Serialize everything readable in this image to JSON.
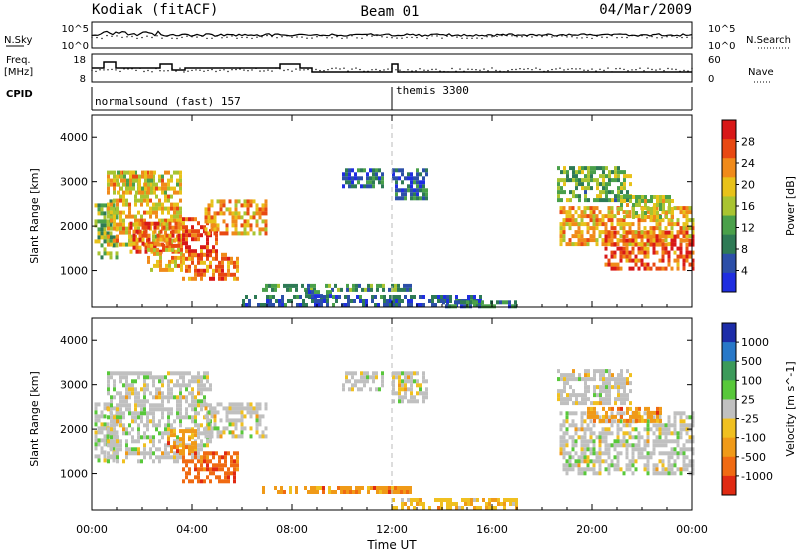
{
  "header": {
    "station": "Kodiak (fitACF)",
    "beam": "Beam 01",
    "date": "04/Mar/2009"
  },
  "top_panels": {
    "nsky": {
      "left_label": "N.Sky",
      "right_label": "N.Search",
      "left_ticks": [
        "10^5",
        "10^0"
      ],
      "right_ticks": [
        "10^5",
        "10^0"
      ]
    },
    "freq": {
      "left_label_line1": "Freq.",
      "left_label_line2": "[MHz]",
      "right_label": "Nave",
      "left_ticks": [
        "18",
        "8"
      ],
      "right_ticks": [
        "60",
        "0"
      ]
    },
    "cpid": {
      "label": "CPID",
      "modes": [
        {
          "name": "normalsound (fast) 157",
          "start_hour": 0
        },
        {
          "name": "themis 3300",
          "start_hour": 12
        }
      ]
    }
  },
  "chart_data": [
    {
      "type": "heatmap",
      "title": "",
      "xlabel": "Time UT",
      "ylabel": "Slant Range [km]",
      "xlim": [
        0,
        24
      ],
      "ylim": [
        180,
        4500
      ],
      "xticks": [
        "00:00",
        "04:00",
        "08:00",
        "12:00",
        "16:00",
        "20:00",
        "00:00"
      ],
      "yticks": [
        1000,
        2000,
        3000,
        4000
      ],
      "colorbar": {
        "label": "Power [dB]",
        "ticks": [
          "4",
          "8",
          "12",
          "16",
          "20",
          "24",
          "28"
        ],
        "range": [
          0,
          32
        ],
        "colors": [
          "#1f2ee0",
          "#2c4fa8",
          "#2e7a55",
          "#4aa04a",
          "#a9c431",
          "#e8c21a",
          "#f08a1a",
          "#e84812",
          "#d81818"
        ]
      },
      "regions": [
        {
          "t0": 0.1,
          "t1": 1.0,
          "r0": 1300,
          "r1": 2600,
          "v": 14
        },
        {
          "t0": 0.6,
          "t1": 3.6,
          "r0": 1600,
          "r1": 3250,
          "v": 20
        },
        {
          "t0": 1.0,
          "t1": 2.5,
          "r0": 2750,
          "r1": 3250,
          "v": 19
        },
        {
          "t0": 1.5,
          "t1": 3.6,
          "r0": 1400,
          "r1": 2100,
          "v": 25
        },
        {
          "t0": 2.2,
          "t1": 3.6,
          "r0": 1000,
          "r1": 1600,
          "v": 22
        },
        {
          "t0": 3.6,
          "t1": 5.0,
          "r0": 1300,
          "r1": 2200,
          "v": 27
        },
        {
          "t0": 3.6,
          "t1": 5.8,
          "r0": 800,
          "r1": 1400,
          "v": 24
        },
        {
          "t0": 4.5,
          "t1": 7.0,
          "r0": 1800,
          "r1": 2600,
          "v": 22
        },
        {
          "t0": 6.8,
          "t1": 12.8,
          "r0": 560,
          "r1": 700,
          "v": 10
        },
        {
          "t0": 6.0,
          "t1": 15.5,
          "r0": 180,
          "r1": 450,
          "v": 6
        },
        {
          "t0": 8.4,
          "t1": 9.5,
          "r0": 440,
          "r1": 560,
          "v": 8
        },
        {
          "t0": 10.0,
          "t1": 11.6,
          "r0": 2900,
          "r1": 3300,
          "v": 7
        },
        {
          "t0": 12.0,
          "t1": 13.4,
          "r0": 2600,
          "r1": 3300,
          "v": 8
        },
        {
          "t0": 14.0,
          "t1": 17.0,
          "r0": 180,
          "r1": 330,
          "v": 8
        },
        {
          "t0": 18.6,
          "t1": 21.5,
          "r0": 2600,
          "r1": 3350,
          "v": 13
        },
        {
          "t0": 18.7,
          "t1": 24.0,
          "r0": 1600,
          "r1": 2450,
          "v": 21
        },
        {
          "t0": 20.5,
          "t1": 24.0,
          "r0": 1000,
          "r1": 1900,
          "v": 26
        },
        {
          "t0": 21.0,
          "t1": 23.2,
          "r0": 2200,
          "r1": 2700,
          "v": 17
        }
      ]
    },
    {
      "type": "heatmap",
      "title": "",
      "xlabel": "Time UT",
      "ylabel": "Slant Range [km]",
      "xlim": [
        0,
        24
      ],
      "ylim": [
        180,
        4500
      ],
      "xticks": [
        "00:00",
        "04:00",
        "08:00",
        "12:00",
        "16:00",
        "20:00",
        "00:00"
      ],
      "yticks": [
        1000,
        2000,
        3000,
        4000
      ],
      "colorbar": {
        "label": "Velocity [m s^-1]",
        "ticks": [
          "1000",
          "500",
          "100",
          "25",
          "-25",
          "-100",
          "-500",
          "-1000"
        ],
        "colors": [
          "#1c2ca8",
          "#2878c8",
          "#3c9a5a",
          "#58c83a",
          "#c0c0c0",
          "#f0c020",
          "#f09a18",
          "#f06a12",
          "#e02a12"
        ]
      },
      "regions": [
        {
          "t0": 0.1,
          "t1": 1.0,
          "r0": 1300,
          "r1": 2600,
          "v": 4
        },
        {
          "t0": 0.6,
          "t1": 4.8,
          "r0": 1300,
          "r1": 3300,
          "v": 4
        },
        {
          "t0": 3.6,
          "t1": 5.8,
          "r0": 800,
          "r1": 1500,
          "v": 7
        },
        {
          "t0": 3.0,
          "t1": 4.2,
          "r0": 1500,
          "r1": 2000,
          "v": 6
        },
        {
          "t0": 4.5,
          "t1": 7.0,
          "r0": 1800,
          "r1": 2600,
          "v": 4
        },
        {
          "t0": 6.8,
          "t1": 12.8,
          "r0": 560,
          "r1": 720,
          "v": 6
        },
        {
          "t0": 12.0,
          "t1": 17.0,
          "r0": 180,
          "r1": 450,
          "v": 5
        },
        {
          "t0": 10.0,
          "t1": 11.6,
          "r0": 2900,
          "r1": 3300,
          "v": 4
        },
        {
          "t0": 12.0,
          "t1": 13.4,
          "r0": 2600,
          "r1": 3300,
          "v": 4
        },
        {
          "t0": 18.7,
          "t1": 24.0,
          "r0": 1000,
          "r1": 2400,
          "v": 4
        },
        {
          "t0": 19.8,
          "t1": 22.8,
          "r0": 2200,
          "r1": 2500,
          "v": 6
        },
        {
          "t0": 18.6,
          "t1": 21.5,
          "r0": 2600,
          "r1": 3350,
          "v": 4
        }
      ]
    }
  ]
}
